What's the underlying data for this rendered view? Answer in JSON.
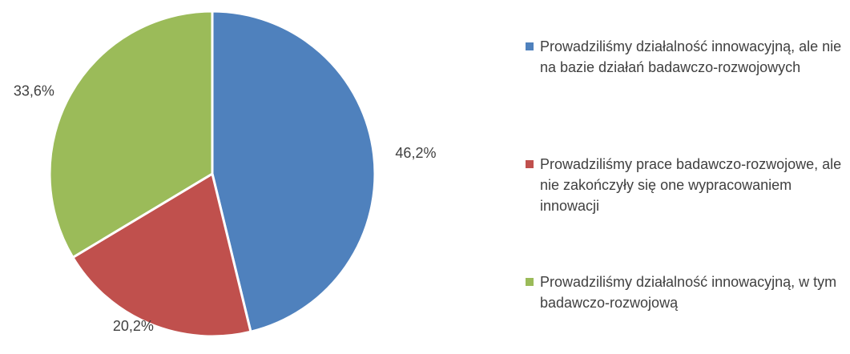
{
  "chart_data": {
    "type": "pie",
    "series": [
      {
        "name": "Prowadziliśmy działalność innowacyjną, ale nie na bazie działań badawczo-rozwojowych",
        "color": "#4f81bd",
        "values": [
          46.2
        ],
        "value_labels": [
          "46,2%"
        ]
      },
      {
        "name": "Prowadziliśmy prace badawczo-rozwojowe, ale nie zakończyły się one wypracowaniem innowacji",
        "color": "#c0504d",
        "values": [
          20.2
        ],
        "value_labels": [
          "20,2%"
        ]
      },
      {
        "name": "Prowadziliśmy działalność innowacyjną, w tym badawczo-rozwojową",
        "color": "#9bbb59",
        "values": [
          33.6
        ],
        "value_labels": [
          "33,6%"
        ]
      }
    ],
    "legend": "right"
  }
}
